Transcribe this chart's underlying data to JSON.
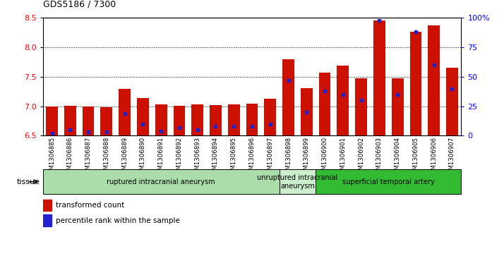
{
  "title": "GDS5186 / 7300",
  "samples": [
    "GSM1306885",
    "GSM1306886",
    "GSM1306887",
    "GSM1306888",
    "GSM1306889",
    "GSM1306890",
    "GSM1306891",
    "GSM1306892",
    "GSM1306893",
    "GSM1306894",
    "GSM1306895",
    "GSM1306896",
    "GSM1306897",
    "GSM1306898",
    "GSM1306899",
    "GSM1306900",
    "GSM1306901",
    "GSM1306902",
    "GSM1306903",
    "GSM1306904",
    "GSM1306905",
    "GSM1306906",
    "GSM1306907"
  ],
  "transformed_count": [
    6.99,
    7.01,
    6.99,
    6.98,
    7.3,
    7.14,
    7.03,
    7.01,
    7.03,
    7.02,
    7.03,
    7.04,
    7.13,
    7.8,
    7.31,
    7.57,
    7.69,
    7.48,
    8.46,
    7.48,
    8.27,
    8.37,
    7.65
  ],
  "percentile_rank": [
    2,
    5,
    3,
    3,
    19,
    10,
    4,
    7,
    5,
    8,
    8,
    8,
    10,
    47,
    20,
    38,
    35,
    30,
    98,
    35,
    88,
    60,
    40
  ],
  "groups": [
    {
      "label": "ruptured intracranial aneurysm",
      "start": 0,
      "end": 13,
      "color": "#aaddaa"
    },
    {
      "label": "unruptured intracranial\naneurysm",
      "start": 13,
      "end": 15,
      "color": "#cceecc"
    },
    {
      "label": "superficial temporal artery",
      "start": 15,
      "end": 23,
      "color": "#33bb33"
    }
  ],
  "y_min": 6.5,
  "y_max": 8.5,
  "y_ticks": [
    6.5,
    7.0,
    7.5,
    8.0,
    8.5
  ],
  "y2_ticks": [
    0,
    25,
    50,
    75,
    100
  ],
  "bar_color": "#cc1100",
  "dot_color": "#2222cc",
  "bar_width": 0.65,
  "bg_color": "#ffffff",
  "legend_red": "transformed count",
  "legend_blue": "percentile rank within the sample",
  "tissue_label": "tissue"
}
